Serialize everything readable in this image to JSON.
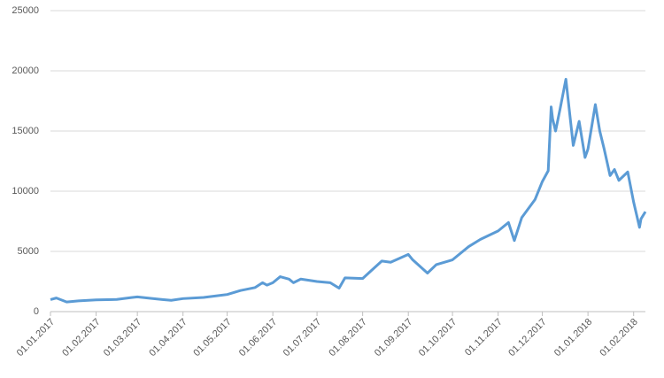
{
  "chart_data": {
    "type": "line",
    "x": [
      "01.01.2017",
      "05.01.2017",
      "12.01.2017",
      "20.01.2017",
      "01.02.2017",
      "15.02.2017",
      "25.02.2017",
      "01.03.2017",
      "10.03.2017",
      "18.03.2017",
      "24.03.2017",
      "01.04.2017",
      "15.04.2017",
      "01.05.2017",
      "10.05.2017",
      "20.05.2017",
      "25.05.2017",
      "28.05.2017",
      "01.06.2017",
      "06.06.2017",
      "12.06.2017",
      "15.06.2017",
      "20.06.2017",
      "01.07.2017",
      "10.07.2017",
      "16.07.2017",
      "20.07.2017",
      "01.08.2017",
      "05.08.2017",
      "14.08.2017",
      "20.08.2017",
      "01.09.2017",
      "04.09.2017",
      "14.09.2017",
      "20.09.2017",
      "01.10.2017",
      "12.10.2017",
      "20.10.2017",
      "01.11.2017",
      "08.11.2017",
      "12.11.2017",
      "17.11.2017",
      "26.11.2017",
      "01.12.2017",
      "05.12.2017",
      "07.12.2017",
      "08.12.2017",
      "10.12.2017",
      "13.12.2017",
      "17.12.2017",
      "22.12.2017",
      "26.12.2017",
      "30.12.2017",
      "01.01.2018",
      "06.01.2018",
      "09.01.2018",
      "12.01.2018",
      "16.01.2018",
      "19.01.2018",
      "22.01.2018",
      "28.01.2018",
      "01.02.2018",
      "05.02.2018",
      "06.02.2018",
      "09.02.2018"
    ],
    "series": [
      {
        "color": "#5b9bd5",
        "values": [
          1000,
          1130,
          800,
          890,
          970,
          1010,
          1170,
          1220,
          1100,
          1000,
          940,
          1080,
          1180,
          1420,
          1750,
          2000,
          2400,
          2200,
          2400,
          2900,
          2700,
          2400,
          2700,
          2500,
          2400,
          1950,
          2800,
          2750,
          3200,
          4200,
          4100,
          4750,
          4300,
          3200,
          3900,
          4300,
          5400,
          6000,
          6700,
          7400,
          5900,
          7800,
          9300,
          10800,
          11700,
          17000,
          16000,
          15000,
          16800,
          19300,
          13800,
          15800,
          12800,
          13500,
          17200,
          15000,
          13500,
          11300,
          11800,
          10900,
          11600,
          9100,
          7000,
          7700,
          8300
        ]
      }
    ],
    "xlim": [
      "01.01.2017",
      "09.02.2018"
    ],
    "xticks": [
      "01.01.2017",
      "01.02.2017",
      "01.03.2017",
      "01.04.2017",
      "01.05.2017",
      "01.06.2017",
      "01.07.2017",
      "01.08.2017",
      "01.09.2017",
      "01.10.2017",
      "01.11.2017",
      "01.12.2017",
      "01.01.2018",
      "01.02.2018"
    ],
    "ylim": [
      0,
      25000
    ],
    "yticks": [
      0,
      5000,
      10000,
      15000,
      20000,
      25000
    ],
    "grid": true
  }
}
